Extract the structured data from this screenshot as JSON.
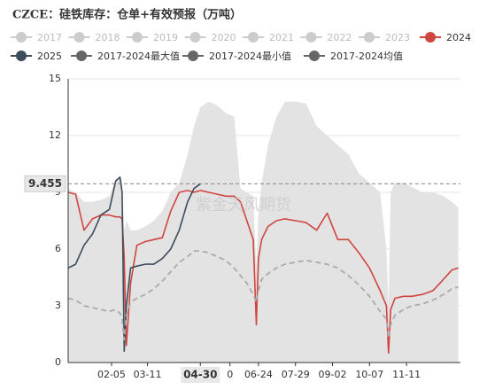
{
  "chart_data": {
    "type": "line",
    "title": "CZCE：硅铁库存：仓单+有效预报（万吨）",
    "watermark": "紫金天风期货",
    "legend_off": [
      "2017",
      "2018",
      "2019",
      "2020",
      "2021",
      "2022",
      "2023"
    ],
    "xlim": [
      -5,
      366
    ],
    "xticks": [
      {
        "value": 36,
        "label": "02-05"
      },
      {
        "value": 70,
        "label": "03-11"
      },
      {
        "value": 120,
        "label": "04-30"
      },
      {
        "value": 148,
        "label": "0"
      },
      {
        "value": 175,
        "label": "06-24"
      },
      {
        "value": 210,
        "label": "07-29"
      },
      {
        "value": 245,
        "label": "09-02"
      },
      {
        "value": 280,
        "label": "10-07"
      },
      {
        "value": 315,
        "label": "11-11"
      }
    ],
    "ylim": [
      0,
      15
    ],
    "yticks": [
      0,
      3,
      6,
      9,
      12,
      15
    ],
    "grid": true,
    "pointer": {
      "y": 9.455,
      "x_tick": 2
    },
    "x": [
      -5,
      2,
      10,
      18,
      26,
      34,
      40,
      44,
      46,
      48,
      50,
      54,
      60,
      68,
      76,
      84,
      92,
      100,
      108,
      114,
      120,
      128,
      136,
      144,
      152,
      158,
      164,
      170,
      173,
      175,
      178,
      184,
      192,
      200,
      210,
      220,
      230,
      240,
      250,
      260,
      270,
      280,
      290,
      296,
      298,
      300,
      304,
      312,
      320,
      330,
      340,
      350,
      358,
      364
    ],
    "series": [
      {
        "name": "2024",
        "color": "#d0453f",
        "values": [
          9.0,
          8.9,
          7.0,
          7.6,
          7.8,
          7.8,
          7.7,
          7.7,
          7.6,
          5.5,
          0.9,
          4.2,
          6.2,
          6.4,
          6.5,
          6.6,
          8.0,
          9.0,
          9.1,
          9.0,
          9.1,
          9.0,
          8.9,
          8.8,
          8.8,
          8.5,
          7.5,
          6.5,
          2.0,
          5.5,
          6.5,
          7.2,
          7.5,
          7.6,
          7.5,
          7.4,
          7.0,
          7.9,
          6.5,
          6.5,
          5.8,
          5.0,
          3.8,
          3.0,
          0.5,
          2.8,
          3.4,
          3.5,
          3.5,
          3.6,
          3.8,
          4.4,
          4.9,
          5.0
        ]
      },
      {
        "name": "2025",
        "color": "#3d4b5c",
        "values": [
          5.0,
          5.2,
          6.2,
          6.8,
          7.8,
          8.1,
          9.6,
          9.8,
          9.0,
          0.6,
          3.0,
          5.0,
          5.1,
          5.2,
          5.2,
          5.5,
          6.0,
          7.0,
          8.5,
          9.2,
          9.455,
          null,
          null,
          null,
          null,
          null,
          null,
          null,
          null,
          null,
          null,
          null,
          null,
          null,
          null,
          null,
          null,
          null,
          null,
          null,
          null,
          null,
          null,
          null,
          null,
          null,
          null,
          null,
          null,
          null,
          null,
          null,
          null,
          null
        ]
      },
      {
        "name": "2017-2024最大值",
        "color": "#666666",
        "fill": "#e3e3e3",
        "area": true,
        "values": [
          9.2,
          9.0,
          8.5,
          8.5,
          8.6,
          8.8,
          9.7,
          9.8,
          9.6,
          7.0,
          7.5,
          7.0,
          7.0,
          7.2,
          7.5,
          8.0,
          9.0,
          9.5,
          11.0,
          12.5,
          13.5,
          13.8,
          13.6,
          13.2,
          13.0,
          9.2,
          9.0,
          8.8,
          5.0,
          8.0,
          9.5,
          11.5,
          13.0,
          13.8,
          13.8,
          13.7,
          12.5,
          12.0,
          11.5,
          11.0,
          10.0,
          9.5,
          9.0,
          6.0,
          3.0,
          9.0,
          9.5,
          9.5,
          9.3,
          9.0,
          9.0,
          8.8,
          8.5,
          8.2
        ]
      },
      {
        "name": "2017-2024最小值",
        "color": "#666666",
        "line_color": "#e3e3e3",
        "values": [
          0.3,
          0.3,
          0.3,
          0.3,
          0.3,
          0.3,
          0.3,
          0.3,
          0.3,
          0.3,
          0.3,
          0.3,
          0.3,
          0.3,
          0.3,
          0.3,
          0.3,
          0.3,
          0.3,
          0.3,
          0.3,
          0.3,
          0.3,
          0.3,
          0.3,
          0.3,
          0.3,
          0.3,
          0.3,
          0.3,
          0.3,
          0.3,
          0.3,
          0.3,
          0.3,
          0.3,
          0.3,
          0.3,
          0.3,
          0.3,
          0.3,
          0.3,
          0.3,
          0.3,
          0.3,
          0.3,
          0.3,
          0.3,
          0.3,
          0.3,
          0.3,
          0.3,
          0.3,
          0.3
        ]
      },
      {
        "name": "2017-2024均值",
        "color": "#666666",
        "line_color": "#aaaaaa",
        "dashed": true,
        "values": [
          3.4,
          3.3,
          3.0,
          2.9,
          2.8,
          2.7,
          2.8,
          2.6,
          2.3,
          1.2,
          2.5,
          3.2,
          3.4,
          3.6,
          3.9,
          4.3,
          4.8,
          5.3,
          5.6,
          5.9,
          5.9,
          5.8,
          5.6,
          5.4,
          5.0,
          4.6,
          4.2,
          3.6,
          3.2,
          3.8,
          4.4,
          4.7,
          5.0,
          5.2,
          5.3,
          5.4,
          5.3,
          5.2,
          5.0,
          4.6,
          4.1,
          3.5,
          2.7,
          2.3,
          1.3,
          2.0,
          2.5,
          2.8,
          3.0,
          3.1,
          3.3,
          3.6,
          3.9,
          4.0
        ]
      }
    ]
  }
}
